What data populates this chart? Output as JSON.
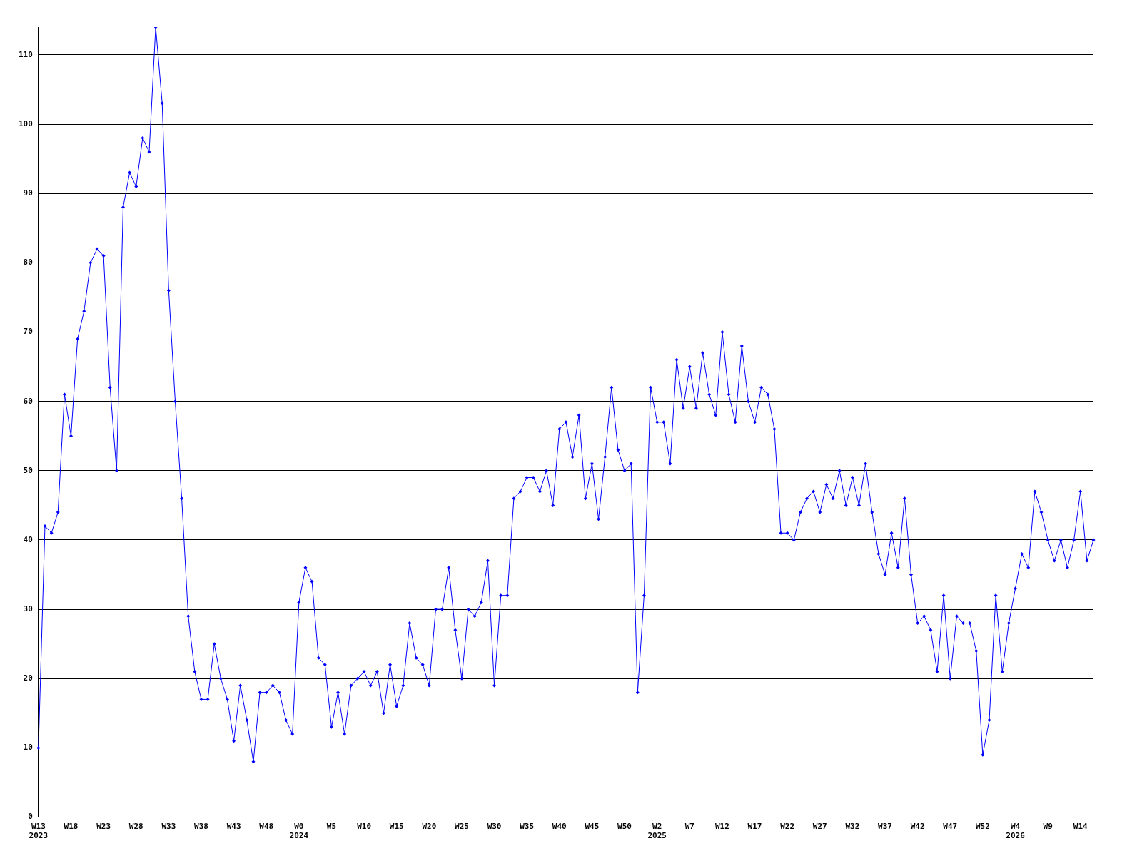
{
  "chart_data": {
    "type": "line",
    "categories": [
      "W13\n2023",
      null,
      null,
      null,
      null,
      "W18",
      null,
      null,
      null,
      null,
      "W23",
      null,
      null,
      null,
      null,
      "W28",
      null,
      null,
      null,
      null,
      "W33",
      null,
      null,
      null,
      null,
      "W38",
      null,
      null,
      null,
      null,
      "W43",
      null,
      null,
      null,
      null,
      "W48",
      null,
      null,
      null,
      null,
      "W0\n2024",
      null,
      null,
      null,
      null,
      "W5",
      null,
      null,
      null,
      null,
      "W10",
      null,
      null,
      null,
      null,
      "W15",
      null,
      null,
      null,
      null,
      "W20",
      null,
      null,
      null,
      null,
      "W25",
      null,
      null,
      null,
      null,
      "W30",
      null,
      null,
      null,
      null,
      "W35",
      null,
      null,
      null,
      null,
      "W40",
      null,
      null,
      null,
      null,
      "W45",
      null,
      null,
      null,
      null,
      "W50",
      null,
      null,
      null,
      null,
      "W2\n2025",
      null,
      null,
      null,
      null,
      "W7",
      null,
      null,
      null,
      null,
      "W12",
      null,
      null,
      null,
      null,
      "W17",
      null,
      null,
      null,
      null,
      "W22",
      null,
      null,
      null,
      null,
      "W27",
      null,
      null,
      null,
      null,
      "W32",
      null,
      null,
      null,
      null,
      "W37",
      null,
      null,
      null,
      null,
      "W42",
      null,
      null,
      null,
      null,
      "W47",
      null,
      null,
      null,
      null,
      "W52",
      null,
      null,
      null,
      null,
      "W4\n2026",
      null,
      null,
      null,
      null,
      "W9",
      null,
      null,
      null,
      null,
      "W14",
      null,
      null
    ],
    "series": [
      {
        "color": "#0000ff",
        "values": [
          10,
          42,
          41,
          44,
          61,
          55,
          69,
          73,
          80,
          82,
          81,
          62,
          50,
          88,
          93,
          91,
          98,
          96,
          114,
          103,
          76,
          60,
          46,
          29,
          21,
          17,
          17,
          25,
          20,
          17,
          11,
          19,
          14,
          8,
          18,
          18,
          19,
          18,
          14,
          12,
          31,
          36,
          34,
          23,
          22,
          13,
          18,
          12,
          19,
          20,
          21,
          19,
          21,
          15,
          22,
          16,
          19,
          28,
          23,
          22,
          19,
          30,
          30,
          36,
          27,
          20,
          30,
          29,
          31,
          37,
          19,
          32,
          32,
          46,
          47,
          49,
          49,
          47,
          50,
          45,
          56,
          57,
          52,
          58,
          46,
          51,
          43,
          52,
          62,
          53,
          50,
          51,
          18,
          32,
          62,
          57,
          57,
          51,
          66,
          59,
          65,
          59,
          67,
          61,
          58,
          70,
          61,
          57,
          68,
          60,
          57,
          62,
          61,
          56,
          41,
          41,
          40,
          44,
          46,
          47,
          44,
          48,
          46,
          50,
          45,
          49,
          45,
          51,
          44,
          38,
          35,
          41,
          36,
          46,
          35,
          28,
          29,
          27,
          21,
          32,
          20,
          29,
          28,
          28,
          24,
          9,
          14,
          32,
          21,
          28,
          33,
          38,
          36,
          47,
          44,
          40,
          37,
          40,
          36,
          40,
          47,
          37,
          40
        ]
      }
    ],
    "ylim": [
      0,
      114
    ],
    "yticks": [
      0,
      10,
      20,
      30,
      40,
      50,
      60,
      70,
      80,
      90,
      100,
      110
    ],
    "grid": "y",
    "marker": "diamond",
    "line_style": "solid",
    "legend": false
  }
}
